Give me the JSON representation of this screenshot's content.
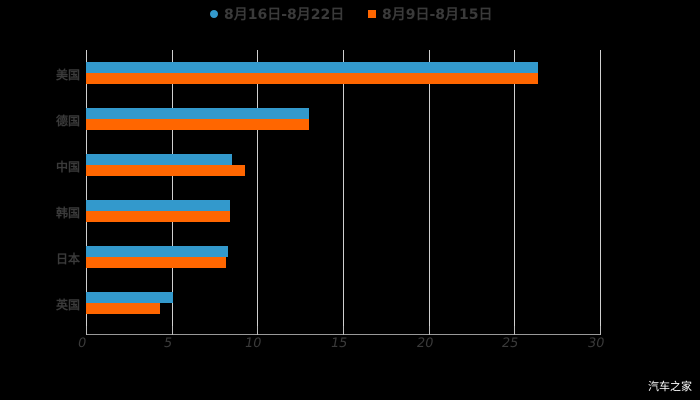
{
  "chart_data": {
    "type": "bar",
    "orientation": "horizontal",
    "title": "",
    "xlabel": "",
    "ylabel": "",
    "xlim": [
      0,
      30
    ],
    "x_ticks": [
      "0",
      "5",
      "10",
      "15",
      "20",
      "25",
      "30"
    ],
    "grid": true,
    "legend_position": "top",
    "categories": [
      "美国",
      "德国",
      "中国",
      "韩国",
      "日本",
      "英国"
    ],
    "series": [
      {
        "name": "8月16日-8月22日",
        "color": "#3399CC",
        "values": [
          26.4,
          13.0,
          8.5,
          8.4,
          8.3,
          5.1
        ]
      },
      {
        "name": "8月9日-8月15日",
        "color": "#FF6600",
        "values": [
          26.4,
          13.0,
          9.3,
          8.4,
          8.2,
          4.3
        ]
      }
    ]
  },
  "legend": {
    "items": [
      {
        "label": "8月16日-8月22日",
        "color": "#3399CC",
        "marker": "circle"
      },
      {
        "label": "8月9日-8月15日",
        "color": "#FF6600",
        "marker": "square"
      }
    ]
  },
  "watermark": "汽车之家"
}
